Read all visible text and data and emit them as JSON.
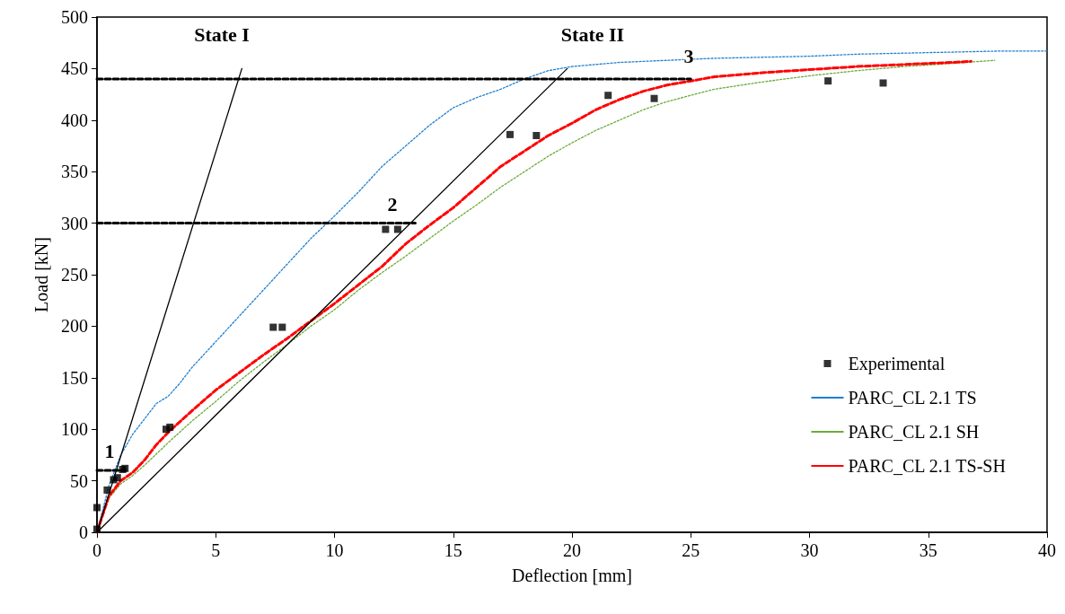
{
  "chart_data": {
    "type": "line",
    "xlabel": "Deflection [mm]",
    "ylabel": "Load [kN]",
    "xlim": [
      0,
      40
    ],
    "xticks": [
      0,
      5,
      10,
      15,
      20,
      25,
      30,
      35,
      40
    ],
    "ylim": [
      0,
      500
    ],
    "yticks": [
      0,
      50,
      100,
      150,
      200,
      250,
      300,
      350,
      400,
      450,
      500
    ],
    "grid": false,
    "legend": "bottom right",
    "annotations": [
      "State I",
      "State II",
      "1",
      "2",
      "3"
    ],
    "series": [
      {
        "name": "Experimental",
        "type": "scatter",
        "marker": "square",
        "color": "#000000",
        "x": [
          0,
          0,
          0.43,
          0.7,
          0.86,
          1.08,
          1.18,
          2.91,
          3.07,
          7.42,
          7.8,
          12.15,
          12.66,
          17.39,
          18.5,
          21.52,
          23.46,
          30.78,
          33.1
        ],
        "values": [
          3,
          24,
          41,
          51,
          53,
          61,
          62,
          100,
          102,
          199,
          199,
          294,
          294,
          386,
          385,
          424,
          421,
          438,
          436
        ]
      },
      {
        "name": "PARC_CL 2.1 TS",
        "marker": "none",
        "line_style": "dotted",
        "color": "#1f7fd0",
        "x": [
          0,
          0.5,
          1,
          1.5,
          2,
          2.5,
          3,
          3.5,
          4,
          5,
          6,
          7,
          8,
          9,
          10,
          11,
          12,
          13,
          14,
          15,
          16,
          17,
          18,
          19,
          20,
          22,
          24,
          26,
          28,
          30,
          32,
          34,
          36,
          38,
          40
        ],
        "values": [
          0,
          45,
          75,
          95,
          110,
          125,
          132,
          145,
          160,
          185,
          210,
          235,
          260,
          285,
          307,
          330,
          355,
          375,
          395,
          412,
          422,
          430,
          440,
          448,
          452,
          456,
          458,
          460,
          461,
          462,
          464,
          465,
          466,
          467,
          467
        ]
      },
      {
        "name": "PARC_CL 2.1 SH",
        "marker": "none",
        "line_style": "dotted",
        "color": "#6aab3a",
        "x": [
          0,
          0.5,
          1,
          1.5,
          2,
          3,
          4,
          5,
          6,
          7,
          8,
          9,
          10,
          11,
          12,
          13,
          14,
          15,
          16,
          17,
          18,
          19,
          20,
          21,
          22,
          23,
          24,
          25,
          26,
          28,
          30,
          32,
          34,
          36,
          37.8
        ],
        "values": [
          0,
          33,
          47,
          55,
          65,
          87,
          108,
          127,
          147,
          165,
          182,
          200,
          216,
          235,
          252,
          268,
          285,
          302,
          318,
          335,
          350,
          365,
          378,
          390,
          400,
          410,
          418,
          424,
          430,
          437,
          443,
          448,
          452,
          455,
          458
        ]
      },
      {
        "name": "PARC_CL 2.1 TS-SH",
        "marker": "none",
        "line_style": "dashed",
        "color": "#ff0000",
        "x": [
          0,
          0.5,
          1,
          1.5,
          2,
          2.5,
          3,
          4,
          5,
          6,
          7,
          8,
          9,
          10,
          11,
          12,
          13,
          14,
          15,
          16,
          17,
          18,
          19,
          20,
          21,
          22,
          23,
          24,
          25,
          26,
          28,
          30,
          32,
          34,
          36,
          36.8
        ],
        "values": [
          0,
          35,
          50,
          58,
          70,
          85,
          97,
          118,
          138,
          155,
          172,
          188,
          205,
          222,
          240,
          258,
          280,
          298,
          315,
          335,
          355,
          370,
          385,
          397,
          410,
          420,
          428,
          434,
          438,
          442,
          446,
          449,
          452,
          454,
          456,
          457
        ]
      },
      {
        "type": "line",
        "marker": "none",
        "line_style": "solid",
        "color": "#000000",
        "x": [
          0,
          6.1
        ],
        "values": [
          0,
          450
        ]
      },
      {
        "type": "line",
        "marker": "none",
        "line_style": "solid",
        "color": "#000000",
        "x": [
          0,
          19.8
        ],
        "values": [
          0,
          450
        ]
      },
      {
        "type": "line",
        "marker": "none",
        "line_style": "dashed",
        "color": "#000000",
        "x": [
          0,
          25
        ],
        "values": [
          440,
          440
        ]
      },
      {
        "type": "line",
        "marker": "none",
        "line_style": "dashed",
        "color": "#000000",
        "x": [
          0,
          13.4
        ],
        "values": [
          300,
          300
        ]
      },
      {
        "type": "line",
        "marker": "none",
        "line_style": "dashed",
        "color": "#000000",
        "x": [
          0,
          1.2
        ],
        "values": [
          60,
          60
        ]
      }
    ]
  }
}
